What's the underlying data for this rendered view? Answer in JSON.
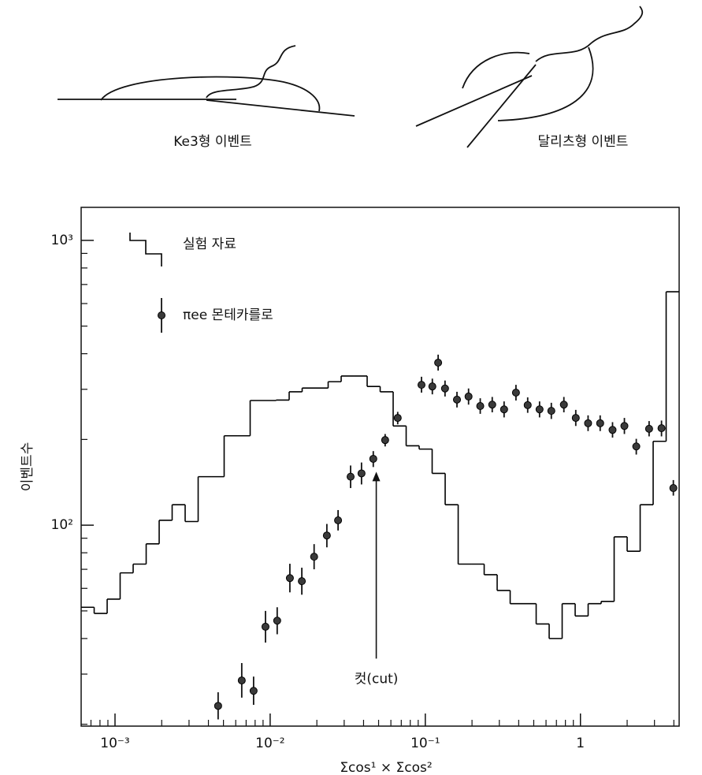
{
  "diagrams": [
    {
      "label": "Ke3형 이벤트"
    },
    {
      "label": "달리츠형 이벤트"
    }
  ],
  "chart_data": {
    "type": "histogram",
    "log_x": true,
    "log_y": true,
    "xlabel": "Σcos¹ × Σcos²",
    "ylabel": "이벤트수",
    "xlim": [
      0.000605,
      4.327
    ],
    "ylim": [
      19.7,
      1306
    ],
    "xticks": [
      {
        "value": 0.001,
        "label": "10⁻³"
      },
      {
        "value": 0.01,
        "label": "10⁻²"
      },
      {
        "value": 0.1,
        "label": "10⁻¹"
      },
      1
    ],
    "yticks": [
      {
        "value": 100,
        "label": "10²"
      },
      {
        "value": 1000,
        "label": "10³"
      }
    ],
    "legend": "upper left",
    "annotation": {
      "text": "컷(cut)",
      "x": 0.0483,
      "y_from": 34,
      "y_to": 154
    },
    "series": [
      {
        "name": "실험 자료",
        "type": "step",
        "color": "#000000",
        "bins": [
          0.000605,
          0.000734,
          0.00089,
          0.001079,
          0.001309,
          0.001588,
          0.001926,
          0.002335,
          0.002832,
          0.003435,
          0.004166,
          0.005052,
          0.006128,
          0.007432,
          0.009013,
          0.01093,
          0.01326,
          0.01608,
          0.0195,
          0.02365,
          0.02869,
          0.03479,
          0.04219,
          0.05117,
          0.06206,
          0.07527,
          0.09129,
          0.1107,
          0.1343,
          0.1629,
          0.1975,
          0.2396,
          0.2905,
          0.3524,
          0.4273,
          0.5183,
          0.6286,
          0.7623,
          0.9246,
          1.121,
          1.36,
          1.649,
          2.0,
          2.426,
          2.942,
          3.568,
          4.327
        ],
        "values": [
          51.5,
          49,
          55,
          68,
          73,
          86,
          104,
          118,
          103,
          148,
          148,
          206,
          206,
          274,
          274,
          275,
          294,
          303,
          303,
          319,
          334,
          334,
          307,
          294,
          223,
          190,
          185,
          152,
          118,
          73,
          73,
          67,
          59,
          53,
          53,
          45,
          40,
          53,
          48,
          53,
          54,
          91,
          81,
          118,
          197,
          660
        ]
      },
      {
        "name": "πee 몬테카를로",
        "type": "errorbar",
        "color": "#3a3a3a",
        "x": [
          0.00462,
          0.00656,
          0.00782,
          0.00933,
          0.0111,
          0.0134,
          0.016,
          0.0192,
          0.0232,
          0.0274,
          0.033,
          0.0388,
          0.0462,
          0.0551,
          0.0664,
          0.0945,
          0.111,
          0.121,
          0.134,
          0.16,
          0.19,
          0.226,
          0.27,
          0.322,
          0.384,
          0.457,
          0.545,
          0.649,
          0.782,
          0.933,
          1.12,
          1.34,
          1.61,
          1.92,
          2.29,
          2.77,
          3.33,
          3.97
        ],
        "values": [
          23.2,
          28.5,
          26.2,
          44.0,
          46.2,
          65.2,
          63.6,
          77.5,
          92.0,
          104,
          148,
          152,
          171,
          199,
          238,
          311,
          307,
          372,
          302,
          276,
          283,
          262,
          265,
          255,
          292,
          264,
          255,
          252,
          265,
          238,
          228,
          228,
          216,
          223,
          189,
          218,
          219,
          135
        ],
        "lower": [
          20.8,
          24.8,
          23.4,
          38.7,
          41.4,
          58.1,
          57.0,
          70.0,
          83.6,
          95.8,
          135,
          139,
          160,
          189,
          226,
          292,
          288,
          349,
          283,
          259,
          265,
          246,
          249,
          239,
          274,
          248,
          239,
          236,
          249,
          223,
          214,
          214,
          203,
          209,
          177,
          205,
          205,
          127
        ],
        "upper": [
          25.9,
          32.8,
          29.4,
          50.0,
          51.5,
          73.2,
          70.9,
          85.8,
          101,
          113,
          162,
          166,
          182,
          209,
          250,
          332,
          327,
          397,
          322,
          294,
          302,
          279,
          282,
          272,
          311,
          281,
          272,
          269,
          282,
          254,
          243,
          243,
          230,
          238,
          201,
          232,
          233,
          144
        ]
      }
    ]
  }
}
